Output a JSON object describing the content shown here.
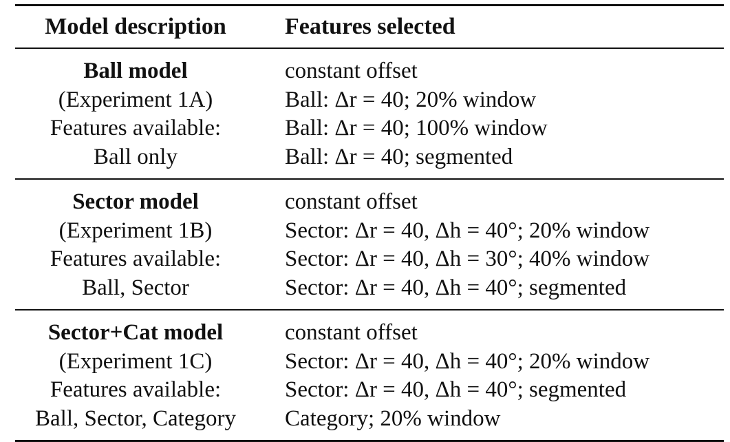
{
  "table": {
    "headers": {
      "model_description": "Model description",
      "features_selected": "Features selected"
    },
    "groups": [
      {
        "model_name": "Ball model",
        "experiment": "(Experiment 1A)",
        "features_label": "Features available:",
        "features_available": "Ball only",
        "selected": [
          "constant offset",
          "Ball: Δr = 40; 20% window",
          "Ball: Δr = 40; 100% window",
          "Ball: Δr = 40; segmented"
        ]
      },
      {
        "model_name": "Sector model",
        "experiment": "(Experiment 1B)",
        "features_label": "Features available:",
        "features_available": "Ball, Sector",
        "selected": [
          "constant offset",
          "Sector: Δr = 40, Δh = 40°; 20% window",
          "Sector: Δr = 40, Δh = 30°; 40% window",
          "Sector: Δr = 40, Δh = 40°; segmented"
        ]
      },
      {
        "model_name": "Sector+Cat model",
        "experiment": "(Experiment 1C)",
        "features_label": "Features available:",
        "features_available": "Ball, Sector, Category",
        "selected": [
          "constant offset",
          "Sector: Δr = 40, Δh = 40°; 20% window",
          "Sector: Δr = 40, Δh = 40°; segmented",
          "Category; 20% window"
        ]
      }
    ]
  }
}
